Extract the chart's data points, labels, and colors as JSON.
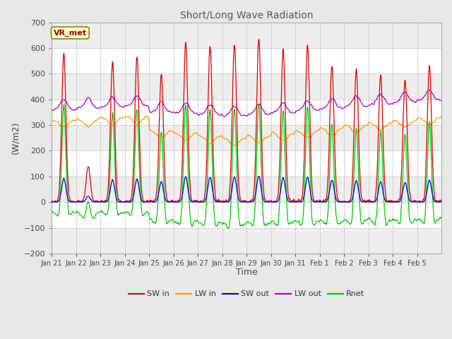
{
  "title": "Short/Long Wave Radiation",
  "xlabel": "Time",
  "ylabel": "(W/m2)",
  "ylim": [
    -200,
    700
  ],
  "yticks": [
    -200,
    -100,
    0,
    100,
    200,
    300,
    400,
    500,
    600,
    700
  ],
  "x_labels": [
    "Jan 21",
    "Jan 22",
    "Jan 23",
    "Jan 24",
    "Jan 25",
    "Jan 26",
    "Jan 27",
    "Jan 28",
    "Jan 29",
    "Jan 30",
    "Jan 31",
    "Feb 1",
    "Feb 2",
    "Feb 3",
    "Feb 4",
    "Feb 5"
  ],
  "n_days": 16,
  "n_points_per_day": 144,
  "colors": {
    "SW_in": "#dd0000",
    "LW_in": "#ff9900",
    "SW_out": "#0000dd",
    "LW_out": "#aa00cc",
    "Rnet": "#00cc00"
  },
  "legend_labels": [
    "SW in",
    "LW in",
    "SW out",
    "LW out",
    "Rnet"
  ],
  "vr_met_label": "VR_met",
  "background_color": "#e8e8e8",
  "plot_bg_color": "#ffffff",
  "grid_color": "#cccccc",
  "title_color": "#666666"
}
